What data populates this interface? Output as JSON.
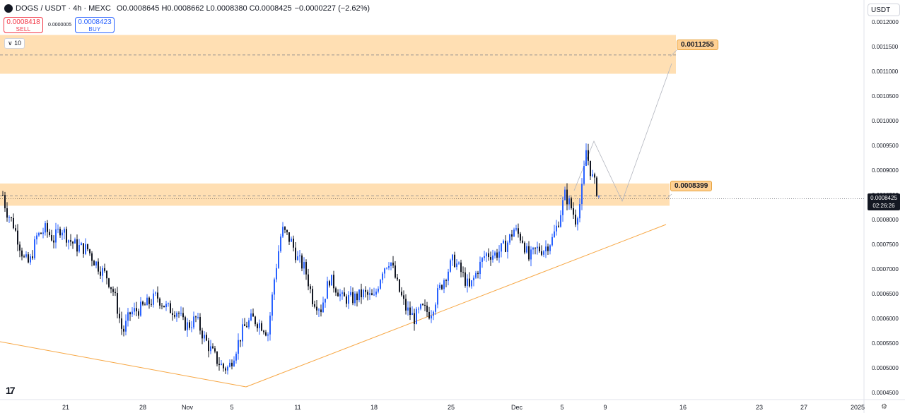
{
  "header": {
    "symbol": "DOGS / USDT · 4h · MEXC",
    "ohlc": "O0.0008645 H0.0008662 L0.0008380 C0.0008425",
    "change": "−0.0000227 (−2.62%)"
  },
  "trade": {
    "sell_price": "0.0008418",
    "sell_label": "SELL",
    "spread": "0.0000005",
    "buy_price": "0.0008423",
    "buy_label": "BUY"
  },
  "indicator_toggle": "10",
  "currency_button": "USDT",
  "current_price": {
    "value": "0.0008425",
    "countdown": "02:26:26"
  },
  "zones": [
    {
      "label": "0.0011255",
      "low": 0.001095,
      "high": 0.0011735,
      "mid": 0.001133
    },
    {
      "label": "0.0008399",
      "low": 0.000828,
      "high": 0.000873,
      "mid": 0.000848
    }
  ],
  "price_axis": [
    "0.0012000",
    "0.0011500",
    "0.0011000",
    "0.0010500",
    "0.0010000",
    "0.0009500",
    "0.0009000",
    "0.0008500",
    "0.0008000",
    "0.0007500",
    "0.0007000",
    "0.0006500",
    "0.0006000",
    "0.0005500",
    "0.0005000",
    "0.0004500"
  ],
  "time_axis": [
    "21",
    "28",
    "Nov",
    "5",
    "11",
    "18",
    "25",
    "Dec",
    "5",
    "9",
    "16",
    "23",
    "27",
    "2025"
  ],
  "colors": {
    "up": "#2962ff",
    "down": "#131722",
    "zone": "#ffd9a6",
    "trend": "#f7a744",
    "dashed": "#787b86"
  },
  "chart_data": {
    "type": "candlestick",
    "ylim": [
      0.00044,
      0.00122
    ],
    "time_labels": [
      "21",
      "28",
      "Nov",
      "5",
      "11",
      "18",
      "25",
      "Dec",
      "5",
      "9",
      "16",
      "23",
      "27",
      "2025"
    ],
    "close_path": [
      [
        0,
        0.00085
      ],
      [
        0.3,
        0.00082
      ],
      [
        1.0,
        0.00079
      ],
      [
        1.5,
        0.000755
      ],
      [
        2.0,
        0.00072
      ],
      [
        2.5,
        0.00071
      ],
      [
        3.2,
        0.000765
      ],
      [
        4.0,
        0.00078
      ],
      [
        4.8,
        0.00076
      ],
      [
        5.5,
        0.000785
      ],
      [
        6.2,
        0.00076
      ],
      [
        7.0,
        0.000745
      ],
      [
        8.0,
        0.00074
      ],
      [
        8.5,
        0.00072
      ],
      [
        9.2,
        0.0007
      ],
      [
        9.8,
        0.000685
      ],
      [
        10.5,
        0.00065
      ],
      [
        11.0,
        0.0006
      ],
      [
        11.3,
        0.00057
      ],
      [
        12.0,
        0.00061
      ],
      [
        13.0,
        0.00062
      ],
      [
        14.0,
        0.000635
      ],
      [
        14.5,
        0.000645
      ],
      [
        15.5,
        0.00062
      ],
      [
        16.5,
        0.000615
      ],
      [
        17.0,
        0.00059
      ],
      [
        17.5,
        0.000585
      ],
      [
        18.2,
        0.0006
      ],
      [
        19.0,
        0.00056
      ],
      [
        19.5,
        0.00054
      ],
      [
        20.2,
        0.000515
      ],
      [
        20.8,
        0.0005
      ],
      [
        21.3,
        0.0005
      ],
      [
        22.0,
        0.00054
      ],
      [
        22.7,
        0.00058
      ],
      [
        23.5,
        0.0006
      ],
      [
        24.5,
        0.000585
      ],
      [
        25.0,
        0.00057
      ],
      [
        25.6,
        0.00068
      ],
      [
        26.3,
        0.00078
      ],
      [
        26.7,
        0.00077
      ],
      [
        27.2,
        0.000755
      ],
      [
        27.8,
        0.00072
      ],
      [
        28.5,
        0.0007
      ],
      [
        29.2,
        0.00064
      ],
      [
        30.0,
        0.00062
      ],
      [
        30.8,
        0.00068
      ],
      [
        31.5,
        0.00066
      ],
      [
        32.0,
        0.00064
      ],
      [
        33.0,
        0.00064
      ],
      [
        34.0,
        0.00065
      ],
      [
        35.0,
        0.00064
      ],
      [
        35.8,
        0.0007
      ],
      [
        36.5,
        0.00072
      ],
      [
        37.3,
        0.00066
      ],
      [
        38.0,
        0.00062
      ],
      [
        38.8,
        0.0006
      ],
      [
        39.5,
        0.00062
      ],
      [
        40.3,
        0.00061
      ],
      [
        41.0,
        0.00065
      ],
      [
        41.8,
        0.00069
      ],
      [
        42.5,
        0.00072
      ],
      [
        43.3,
        0.00069
      ],
      [
        44.0,
        0.00066
      ],
      [
        44.8,
        0.0007
      ],
      [
        45.5,
        0.00073
      ],
      [
        46.5,
        0.00073
      ],
      [
        47.5,
        0.00075
      ],
      [
        48.2,
        0.00078
      ],
      [
        49.0,
        0.00076
      ],
      [
        49.6,
        0.00072
      ],
      [
        50.3,
        0.00074
      ],
      [
        51.0,
        0.00074
      ],
      [
        51.8,
        0.00076
      ],
      [
        52.3,
        0.00079
      ],
      [
        53.0,
        0.00085
      ],
      [
        53.5,
        0.00083
      ],
      [
        54.0,
        0.0008
      ],
      [
        54.5,
        0.00084
      ],
      [
        55.0,
        0.00094
      ],
      [
        55.5,
        0.00089
      ],
      [
        56.0,
        0.00086
      ],
      [
        56.3,
        0.000842
      ]
    ],
    "annotations": [
      "0.0011255",
      "0.0008399"
    ]
  }
}
